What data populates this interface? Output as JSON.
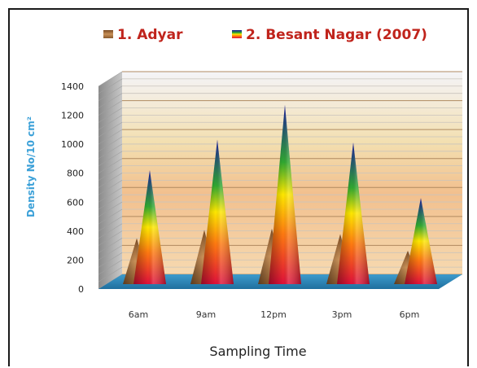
{
  "chart_data": {
    "type": "bar",
    "shape": "cone",
    "style": "3d",
    "categories": [
      "6am",
      "9am",
      "12pm",
      "3pm",
      "6pm"
    ],
    "series": [
      {
        "name": "1. Adyar",
        "values": [
          330,
          390,
          400,
          360,
          240
        ]
      },
      {
        "name": "2. Besant Nagar (2007)",
        "values": [
          820,
          1040,
          1290,
          1020,
          620
        ]
      }
    ],
    "xlabel": "Sampling Time",
    "ylabel": "Density No/10 cm²",
    "ylim": [
      0,
      1400
    ],
    "yticks": [
      0,
      200,
      400,
      600,
      800,
      1000,
      1200,
      1400
    ],
    "legend_position": "top",
    "grid": true,
    "colors": {
      "legend_text": "#c0241c",
      "floor": "#2a86b8",
      "ylabel": "#3aa0d8"
    }
  }
}
